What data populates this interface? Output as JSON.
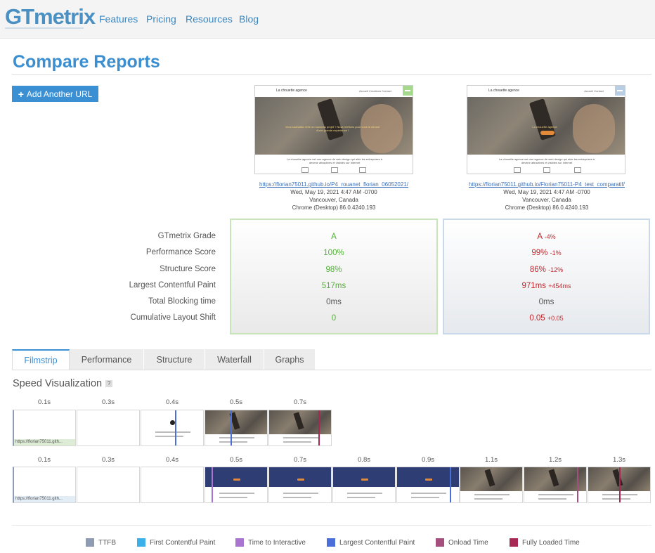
{
  "header": {
    "logo": "GTmetrix",
    "nav": [
      "Features",
      "Pricing",
      "Resources",
      "Blog"
    ]
  },
  "page": {
    "title": "Compare Reports",
    "add_button": "Add Another URL"
  },
  "reports": [
    {
      "url": "https://florian75011.github.io/P4_rouanet_florian_06052021/",
      "date": "Wed, May 19, 2021 4:47 AM -0700",
      "location": "Vancouver, Canada",
      "browser": "Chrome (Desktop) 86.0.4240.193",
      "thumb": {
        "brand": "La chouette agence",
        "menu": "Accueil   Creations   Contact",
        "hero_text": "Vous souhaitez crée un nouveau projet ? Nous mettons pour vous le devant d'une grande expérience !",
        "sub_text": "La chouette agence est une agence de web design qui aide les entreprises à devenir attractives et visibles sur Internet"
      },
      "accent": "#a6d98d"
    },
    {
      "url": "https://florian75011.github.io/Florian75011-P4_test_comparatif/",
      "date": "Wed, May 19, 2021 4:47 AM -0700",
      "location": "Vancouver, Canada",
      "browser": "Chrome (Desktop) 86.0.4240.193",
      "thumb": {
        "brand": "La chouette agence",
        "menu": "Accueil   Contact",
        "hero_text": "La chouette agence",
        "sub_text": "La chouette agence est une agence de web design qui aide les entreprises à devenir attractives et visibles sur Internet"
      },
      "accent": "#b9cde3"
    }
  ],
  "metrics": {
    "labels": [
      "GTmetrix Grade",
      "Performance Score",
      "Structure Score",
      "Largest Contentful Paint",
      "Total Blocking time",
      "Cumulative Layout Shift"
    ],
    "a": [
      "A",
      "100%",
      "98%",
      "517ms",
      "0ms",
      "0"
    ],
    "b": [
      {
        "value": "A",
        "delta": "-4%"
      },
      {
        "value": "99%",
        "delta": "-1%"
      },
      {
        "value": "86%",
        "delta": "-12%"
      },
      {
        "value": "971ms",
        "delta": "+454ms"
      },
      {
        "value": "0ms",
        "delta": ""
      },
      {
        "value": "0.05",
        "delta": "+0.05"
      }
    ]
  },
  "tabs": [
    "Filmstrip",
    "Performance",
    "Structure",
    "Waterfall",
    "Graphs"
  ],
  "speed": {
    "title": "Speed Visualization",
    "help": "?",
    "strip_a_times": [
      "0.1s",
      "0.3s",
      "0.4s",
      "0.5s",
      "0.7s"
    ],
    "strip_b_times": [
      "0.1s",
      "0.3s",
      "0.4s",
      "0.5s",
      "0.7s",
      "0.8s",
      "0.9s",
      "1.1s",
      "1.2s",
      "1.3s"
    ],
    "frame_url": "https://florian75011.gith..."
  },
  "legend": [
    {
      "label": "TTFB",
      "color": "#8f9bb3"
    },
    {
      "label": "First Contentful Paint",
      "color": "#3cb0e8"
    },
    {
      "label": "Time to Interactive",
      "color": "#a874d0"
    },
    {
      "label": "Largest Contentful Paint",
      "color": "#4a6fd9"
    },
    {
      "label": "Onload Time",
      "color": "#a5507c"
    },
    {
      "label": "Fully Loaded Time",
      "color": "#a82855"
    }
  ],
  "colors": {
    "green": "#51b136",
    "red": "#c2272d",
    "blue": "#3b8fd3"
  }
}
